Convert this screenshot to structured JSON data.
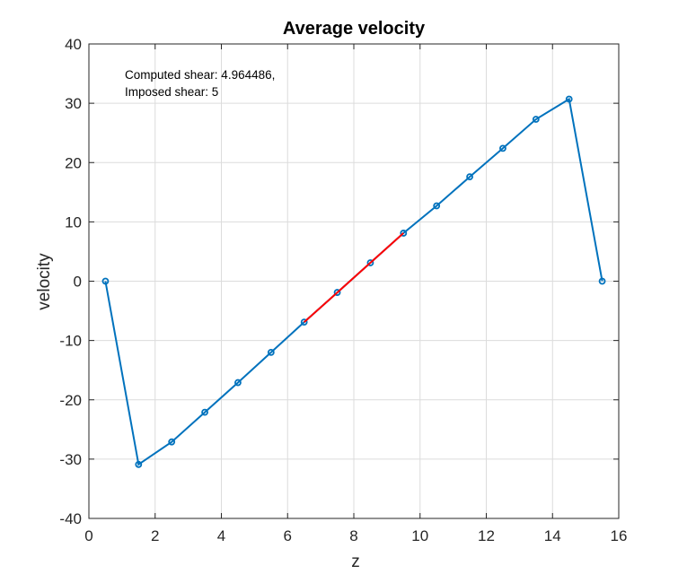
{
  "chart_data": {
    "type": "line",
    "title": "Average velocity",
    "xlabel": "z",
    "ylabel": "velocity",
    "xlim": [
      0,
      16
    ],
    "ylim": [
      -40,
      40
    ],
    "xticks": [
      0,
      2,
      4,
      6,
      8,
      10,
      12,
      14,
      16
    ],
    "yticks": [
      -40,
      -30,
      -20,
      -10,
      0,
      10,
      20,
      30,
      40
    ],
    "grid": true,
    "annotations": [
      "Computed shear: 4.964486,",
      "Imposed shear: 5"
    ],
    "series": [
      {
        "color": "#0072bd",
        "marker": "circle",
        "x": [
          0.5,
          1.5,
          2.5,
          3.5,
          4.5,
          5.5,
          6.5,
          7.5,
          8.5,
          9.5,
          10.5,
          11.5,
          12.5,
          13.5,
          14.5,
          15.5
        ],
        "y": [
          0,
          -30.9,
          -27.1,
          -22.1,
          -17.1,
          -12.0,
          -6.9,
          -1.9,
          3.1,
          8.1,
          12.7,
          17.6,
          22.4,
          27.3,
          30.7,
          0
        ]
      },
      {
        "color": "#ff0000",
        "marker": "none",
        "x": [
          6.5,
          7.5,
          8.5,
          9.5
        ],
        "y": [
          -6.9,
          -1.9,
          3.1,
          8.1
        ]
      }
    ]
  }
}
